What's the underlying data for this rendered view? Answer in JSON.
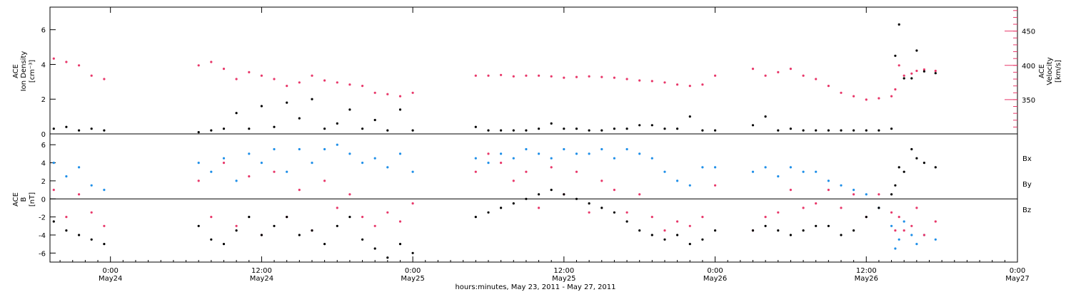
{
  "colors": {
    "density": "#000000",
    "velocity": "#e8386a",
    "bx": "#000000",
    "by": "#1f8fe8",
    "bz": "#e8386a"
  },
  "xaxis": {
    "title": "hours:minutes, May 23, 2011 - May 27, 2011",
    "ticks": [
      {
        "time": "0:00",
        "date": "May24"
      },
      {
        "time": "12:00",
        "date": "May24"
      },
      {
        "time": "0:00",
        "date": "May25"
      },
      {
        "time": "12:00",
        "date": "May25"
      },
      {
        "time": "0:00",
        "date": "May26"
      },
      {
        "time": "12:00",
        "date": "May26"
      },
      {
        "time": "0:00",
        "date": "May27"
      }
    ]
  },
  "chart_data": [
    {
      "type": "scatter",
      "panel": "plasma",
      "x_unit": "hours since May 23 00:00",
      "xlim": [
        19.2,
        96
      ],
      "left_axis": {
        "label_line1": "ACE",
        "label_line2": "Ion Density",
        "unit": "[cm⁻³]",
        "ylim": [
          0,
          7.3
        ],
        "ticks": [
          "0",
          "2",
          "4",
          "6"
        ]
      },
      "right_axis": {
        "label_line1": "ACE",
        "label_line2": "Velocity",
        "unit": "[km/s]",
        "ylim": [
          300,
          485
        ],
        "ticks": [
          "350",
          "400",
          "450"
        ]
      },
      "series": [
        {
          "name": "Ion Density",
          "axis": "left",
          "x": [
            19.5,
            20.5,
            21.5,
            22.5,
            23.5,
            31,
            32,
            33,
            34,
            35,
            36,
            37,
            38,
            39,
            40,
            41,
            42,
            43,
            44,
            45,
            46,
            47,
            48,
            53,
            54,
            55,
            56,
            57,
            58,
            59,
            60,
            61,
            62,
            63,
            64,
            65,
            66,
            67,
            68,
            69,
            70,
            71,
            72,
            75,
            76,
            77,
            78,
            79,
            80,
            81,
            82,
            83,
            84,
            85,
            86,
            86.3,
            86.6,
            87,
            87.6,
            88,
            88.6,
            89.5
          ],
          "y": [
            0.3,
            0.4,
            0.2,
            0.3,
            0.2,
            0.1,
            0.2,
            0.3,
            1.2,
            0.3,
            1.6,
            0.4,
            1.8,
            0.9,
            2.0,
            0.3,
            0.6,
            1.4,
            0.3,
            0.8,
            0.2,
            1.4,
            0.2,
            0.4,
            0.2,
            0.2,
            0.2,
            0.2,
            0.3,
            0.6,
            0.3,
            0.3,
            0.2,
            0.2,
            0.3,
            0.3,
            0.5,
            0.5,
            0.3,
            0.3,
            1.0,
            0.2,
            0.2,
            0.5,
            1.0,
            0.2,
            0.3,
            0.2,
            0.2,
            0.2,
            0.2,
            0.2,
            0.2,
            0.2,
            0.3,
            4.5,
            6.3,
            3.2,
            3.2,
            4.8,
            3.6,
            3.5
          ]
        },
        {
          "name": "Velocity",
          "axis": "right",
          "x": [
            19.5,
            20.5,
            21.5,
            22.5,
            23.5,
            31,
            32,
            33,
            34,
            35,
            36,
            37,
            38,
            39,
            40,
            41,
            42,
            43,
            44,
            45,
            46,
            47,
            48,
            53,
            54,
            55,
            56,
            57,
            58,
            59,
            60,
            61,
            62,
            63,
            64,
            65,
            66,
            67,
            68,
            69,
            70,
            71,
            72,
            75,
            76,
            77,
            78,
            79,
            80,
            81,
            82,
            83,
            84,
            85,
            86,
            86.3,
            86.6,
            87,
            87.6,
            88,
            88.6,
            89.5
          ],
          "y": [
            410,
            405,
            400,
            385,
            380,
            400,
            405,
            395,
            380,
            390,
            385,
            380,
            370,
            375,
            385,
            378,
            375,
            372,
            370,
            360,
            358,
            355,
            360,
            385,
            385,
            386,
            384,
            385,
            385,
            384,
            382,
            383,
            384,
            383,
            382,
            380,
            378,
            377,
            375,
            372,
            370,
            372,
            385,
            395,
            385,
            390,
            395,
            385,
            380,
            370,
            360,
            355,
            350,
            352,
            355,
            365,
            400,
            385,
            388,
            392,
            394,
            392
          ]
        }
      ]
    },
    {
      "type": "scatter",
      "panel": "magnetic-field",
      "x_unit": "hours since May 23 00:00",
      "xlim": [
        19.2,
        96
      ],
      "left_axis": {
        "label_line1": "ACE",
        "label_line2": "B",
        "unit": "[nT]",
        "ylim": [
          -7,
          7.2
        ],
        "ticks": [
          "-6",
          "-4",
          "-2",
          "0",
          "2",
          "4",
          "6"
        ]
      },
      "legend": [
        "Bx",
        "By",
        "Bz"
      ],
      "series": [
        {
          "name": "Bx",
          "x": [
            19.5,
            20.5,
            21.5,
            22.5,
            23.5,
            31,
            32,
            33,
            34,
            35,
            36,
            37,
            38,
            39,
            40,
            41,
            42,
            43,
            44,
            45,
            46,
            47,
            48,
            53,
            54,
            55,
            56,
            57,
            58,
            59,
            60,
            61,
            62,
            63,
            64,
            65,
            66,
            67,
            68,
            69,
            70,
            71,
            72,
            75,
            76,
            77,
            78,
            79,
            80,
            81,
            82,
            83,
            84,
            85,
            86,
            86.3,
            86.6,
            87,
            87.6,
            88,
            88.6,
            89.5
          ],
          "y": [
            -2.5,
            -3.5,
            -4.0,
            -4.5,
            -5.0,
            -3.0,
            -4.5,
            -5.0,
            -3.5,
            -2.0,
            -4.0,
            -3.0,
            -2.0,
            -4.0,
            -3.5,
            -5.0,
            -3.0,
            -2.0,
            -4.5,
            -5.5,
            -6.5,
            -5.0,
            -6.0,
            -2.0,
            -1.5,
            -1.0,
            -0.5,
            0,
            0.5,
            1.0,
            0.5,
            0,
            -0.5,
            -1.0,
            -1.5,
            -2.5,
            -3.5,
            -4.0,
            -4.5,
            -4.0,
            -5.0,
            -4.5,
            -3.5,
            -3.5,
            -3.0,
            -3.5,
            -4.0,
            -3.5,
            -3.0,
            -3.0,
            -4.0,
            -3.5,
            -2.0,
            -1.0,
            0.5,
            1.5,
            3.5,
            3.0,
            5.5,
            4.5,
            4.0,
            3.5
          ]
        },
        {
          "name": "By",
          "x": [
            19.5,
            20.5,
            21.5,
            22.5,
            23.5,
            31,
            32,
            33,
            34,
            35,
            36,
            37,
            38,
            39,
            40,
            41,
            42,
            43,
            44,
            45,
            46,
            47,
            48,
            53,
            54,
            55,
            56,
            57,
            58,
            59,
            60,
            61,
            62,
            63,
            64,
            65,
            66,
            67,
            68,
            69,
            70,
            71,
            72,
            75,
            76,
            77,
            78,
            79,
            80,
            81,
            82,
            83,
            84,
            85,
            86,
            86.3,
            86.6,
            87,
            87.6,
            88,
            88.6,
            89.5
          ],
          "y": [
            4.0,
            2.5,
            3.5,
            1.5,
            1.0,
            4.0,
            3.0,
            4.5,
            2.0,
            5.0,
            4.0,
            5.5,
            3.0,
            5.5,
            4.0,
            5.5,
            6.0,
            5.0,
            4.0,
            4.5,
            3.5,
            5.0,
            3.0,
            4.5,
            4.0,
            5.0,
            4.5,
            5.5,
            5.0,
            4.5,
            5.5,
            5.0,
            5.0,
            5.5,
            4.5,
            5.5,
            5.0,
            4.5,
            3.0,
            2.0,
            1.5,
            3.5,
            3.5,
            3.0,
            3.5,
            2.5,
            3.5,
            3.0,
            3.0,
            2.0,
            1.5,
            1.0,
            0.5,
            -1.0,
            -3.0,
            -5.5,
            -4.5,
            -2.5,
            -4.0,
            -5.0,
            -4.0,
            -4.5
          ]
        },
        {
          "name": "Bz",
          "x": [
            19.5,
            20.5,
            21.5,
            22.5,
            23.5,
            31,
            32,
            33,
            34,
            35,
            36,
            37,
            38,
            39,
            40,
            41,
            42,
            43,
            44,
            45,
            46,
            47,
            48,
            53,
            54,
            55,
            56,
            57,
            58,
            59,
            60,
            61,
            62,
            63,
            64,
            65,
            66,
            67,
            68,
            69,
            70,
            71,
            72,
            75,
            76,
            77,
            78,
            79,
            80,
            81,
            82,
            83,
            84,
            85,
            86,
            86.3,
            86.6,
            87,
            87.6,
            88,
            88.6,
            89.5
          ],
          "y": [
            1.0,
            -2.0,
            0.5,
            -1.5,
            -3.0,
            2.0,
            -2.0,
            4.0,
            -3.0,
            2.5,
            -4.0,
            3.0,
            -2.0,
            1.0,
            -3.5,
            2.0,
            -1.0,
            0.5,
            -2.0,
            -3.0,
            -1.5,
            -2.5,
            -0.5,
            3.0,
            5.0,
            4.0,
            2.0,
            3.0,
            -1.0,
            3.5,
            0.5,
            3.0,
            -1.5,
            2.0,
            1.0,
            -1.5,
            0.5,
            -2.0,
            -3.5,
            -2.5,
            -3.0,
            -2.0,
            1.5,
            -3.5,
            -2.0,
            -1.5,
            1.0,
            -1.0,
            -0.5,
            1.0,
            -1.0,
            0.5,
            -2.0,
            0.5,
            -1.5,
            -3.5,
            -2.0,
            -3.5,
            -3.0,
            -1.0,
            -4.0,
            -2.5
          ]
        }
      ]
    }
  ]
}
